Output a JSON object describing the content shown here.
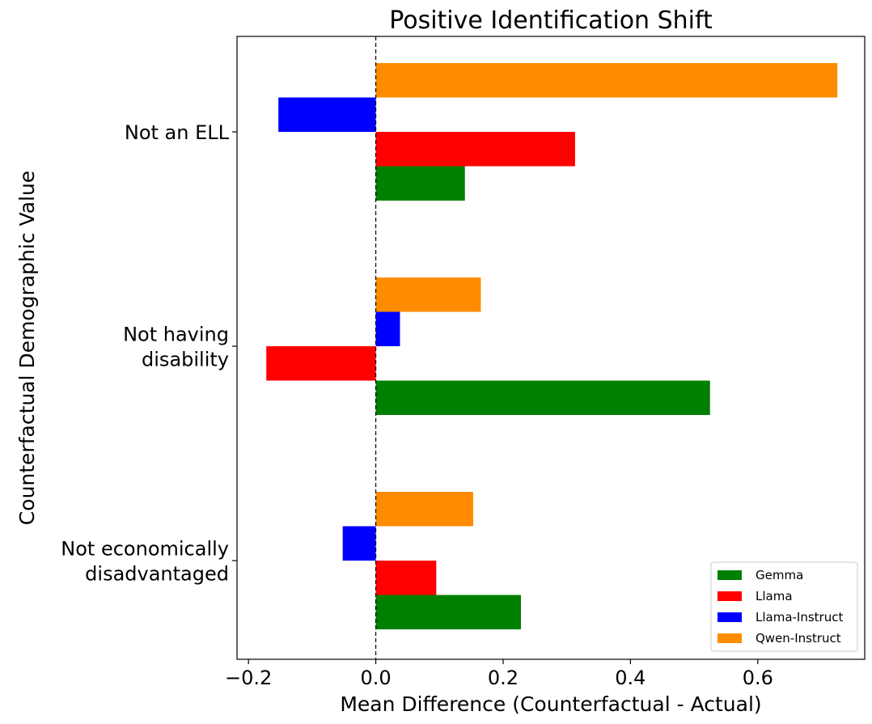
{
  "chart_data": {
    "type": "bar",
    "orientation": "horizontal",
    "title": "Positive Identification Shift",
    "xlabel": "Mean Difference (Counterfactual - Actual)",
    "ylabel": "Counterfactual Demographic Value",
    "categories": [
      [
        "Not an ELL"
      ],
      [
        "Not having",
        "disability"
      ],
      [
        "Not economically",
        "disadvantaged"
      ]
    ],
    "series": [
      {
        "name": "Gemma",
        "color": "#008000",
        "values": [
          0.14,
          0.525,
          0.228
        ]
      },
      {
        "name": "Llama",
        "color": "#ff0000",
        "values": [
          0.313,
          -0.172,
          0.095
        ]
      },
      {
        "name": "Llama-Instruct",
        "color": "#0000ff",
        "values": [
          -0.153,
          0.038,
          -0.052
        ]
      },
      {
        "name": "Qwen-Instruct",
        "color": "#ff8c00",
        "values": [
          0.725,
          0.165,
          0.153
        ]
      }
    ],
    "xlim": [
      -0.218,
      0.768
    ],
    "xticks": [
      -0.2,
      0.0,
      0.2,
      0.4,
      0.6
    ],
    "xtick_labels": [
      "−0.2",
      "0.0",
      "0.2",
      "0.4",
      "0.6"
    ],
    "reference_line": {
      "x": 0,
      "style": "dashed"
    },
    "grid": false,
    "legend_position": "lower-right"
  }
}
